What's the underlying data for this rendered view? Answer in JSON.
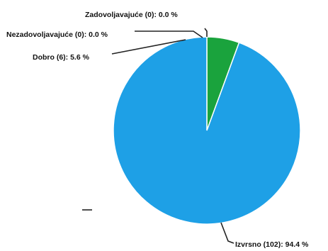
{
  "chart_data": {
    "type": "pie",
    "slices": [
      {
        "label": "Izvrsno",
        "count": 102,
        "percent": 94.4,
        "color": "#1ea0e6",
        "text": "Izvrsno (102): 94.4 %"
      },
      {
        "label": "Dobro",
        "count": 6,
        "percent": 5.6,
        "color": "#1aa33d",
        "text": "Dobro (6): 5.6 %"
      },
      {
        "label": "Nezadovoljavajuće",
        "count": 0,
        "percent": 0.0,
        "color": "#f0c000",
        "text": "Nezadovoljavajuće (0): 0.0 %"
      },
      {
        "label": "Zadovoljavajuće",
        "count": 0,
        "percent": 0.0,
        "color": "#e04040",
        "text": "Zadovoljavajuće (0): 0.0 %"
      }
    ],
    "start_angle_deg": 0,
    "direction": "clockwise"
  }
}
